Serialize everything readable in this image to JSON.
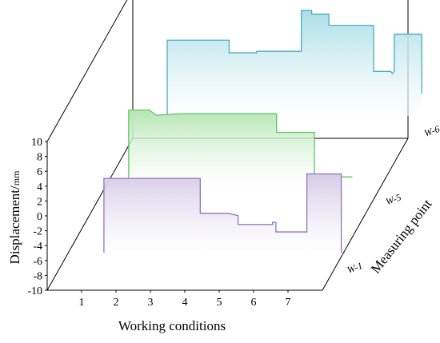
{
  "chart_data": {
    "type": "3d-step-area",
    "xlabel": "Working conditions",
    "ylabel": "Displacement/",
    "ylabel_unit": "mm",
    "zlabel": "Measuring point",
    "x_ticks": [
      "1",
      "2",
      "3",
      "4",
      "5",
      "6",
      "7"
    ],
    "y_ticks": [
      "-10",
      "-8",
      "-6",
      "-4",
      "-2",
      "0",
      "2",
      "4",
      "6",
      "8",
      "10"
    ],
    "ylim": [
      -10,
      10
    ],
    "grid": false,
    "series": [
      {
        "name": "W-6",
        "color": "#4aabbe",
        "fill_top": "#a9dee8",
        "x": [
          1.0,
          1.0,
          2.0,
          2.8,
          2.8,
          3.6,
          3.6,
          4.9,
          4.9,
          5.2,
          5.2,
          5.7,
          5.7,
          6.0,
          6.0,
          7.0,
          7.0,
          7.5,
          7.55,
          7.6,
          7.6,
          8.4,
          8.4
        ],
        "y": [
          -7.0,
          3.2,
          3.2,
          3.2,
          1.5,
          1.5,
          1.7,
          1.7,
          7.2,
          7.2,
          6.7,
          6.7,
          5.2,
          5.2,
          5.2,
          5.2,
          -1.0,
          -1.0,
          -1.3,
          -1.0,
          4.0,
          4.0,
          -4.0
        ]
      },
      {
        "name": "W-5",
        "color": "#5ec45e",
        "fill_top": "#b6e6b4",
        "x": [
          1.0,
          1.0,
          1.6,
          1.8,
          2.5,
          5.3,
          5.3,
          5.4,
          5.4,
          6.4,
          6.4,
          7.5
        ],
        "y": [
          -7.0,
          3.0,
          3.0,
          2.3,
          2.5,
          2.5,
          0.0,
          0.0,
          0.0,
          0.0,
          -6.0,
          -6.0
        ]
      },
      {
        "name": "W-1",
        "color": "#8c76b8",
        "fill_top": "#d6cbe8",
        "x": [
          1.4,
          1.4,
          4.2,
          4.2,
          5.0,
          5.3,
          5.3,
          6.3,
          6.3,
          6.4,
          6.4,
          7.3,
          7.3,
          8.3,
          8.3
        ],
        "y": [
          -7.0,
          3.0,
          3.0,
          -1.7,
          -1.7,
          -2.0,
          -3.2,
          -3.2,
          -2.9,
          -2.9,
          -4.2,
          -4.2,
          3.6,
          3.6,
          -7.0
        ]
      }
    ]
  }
}
